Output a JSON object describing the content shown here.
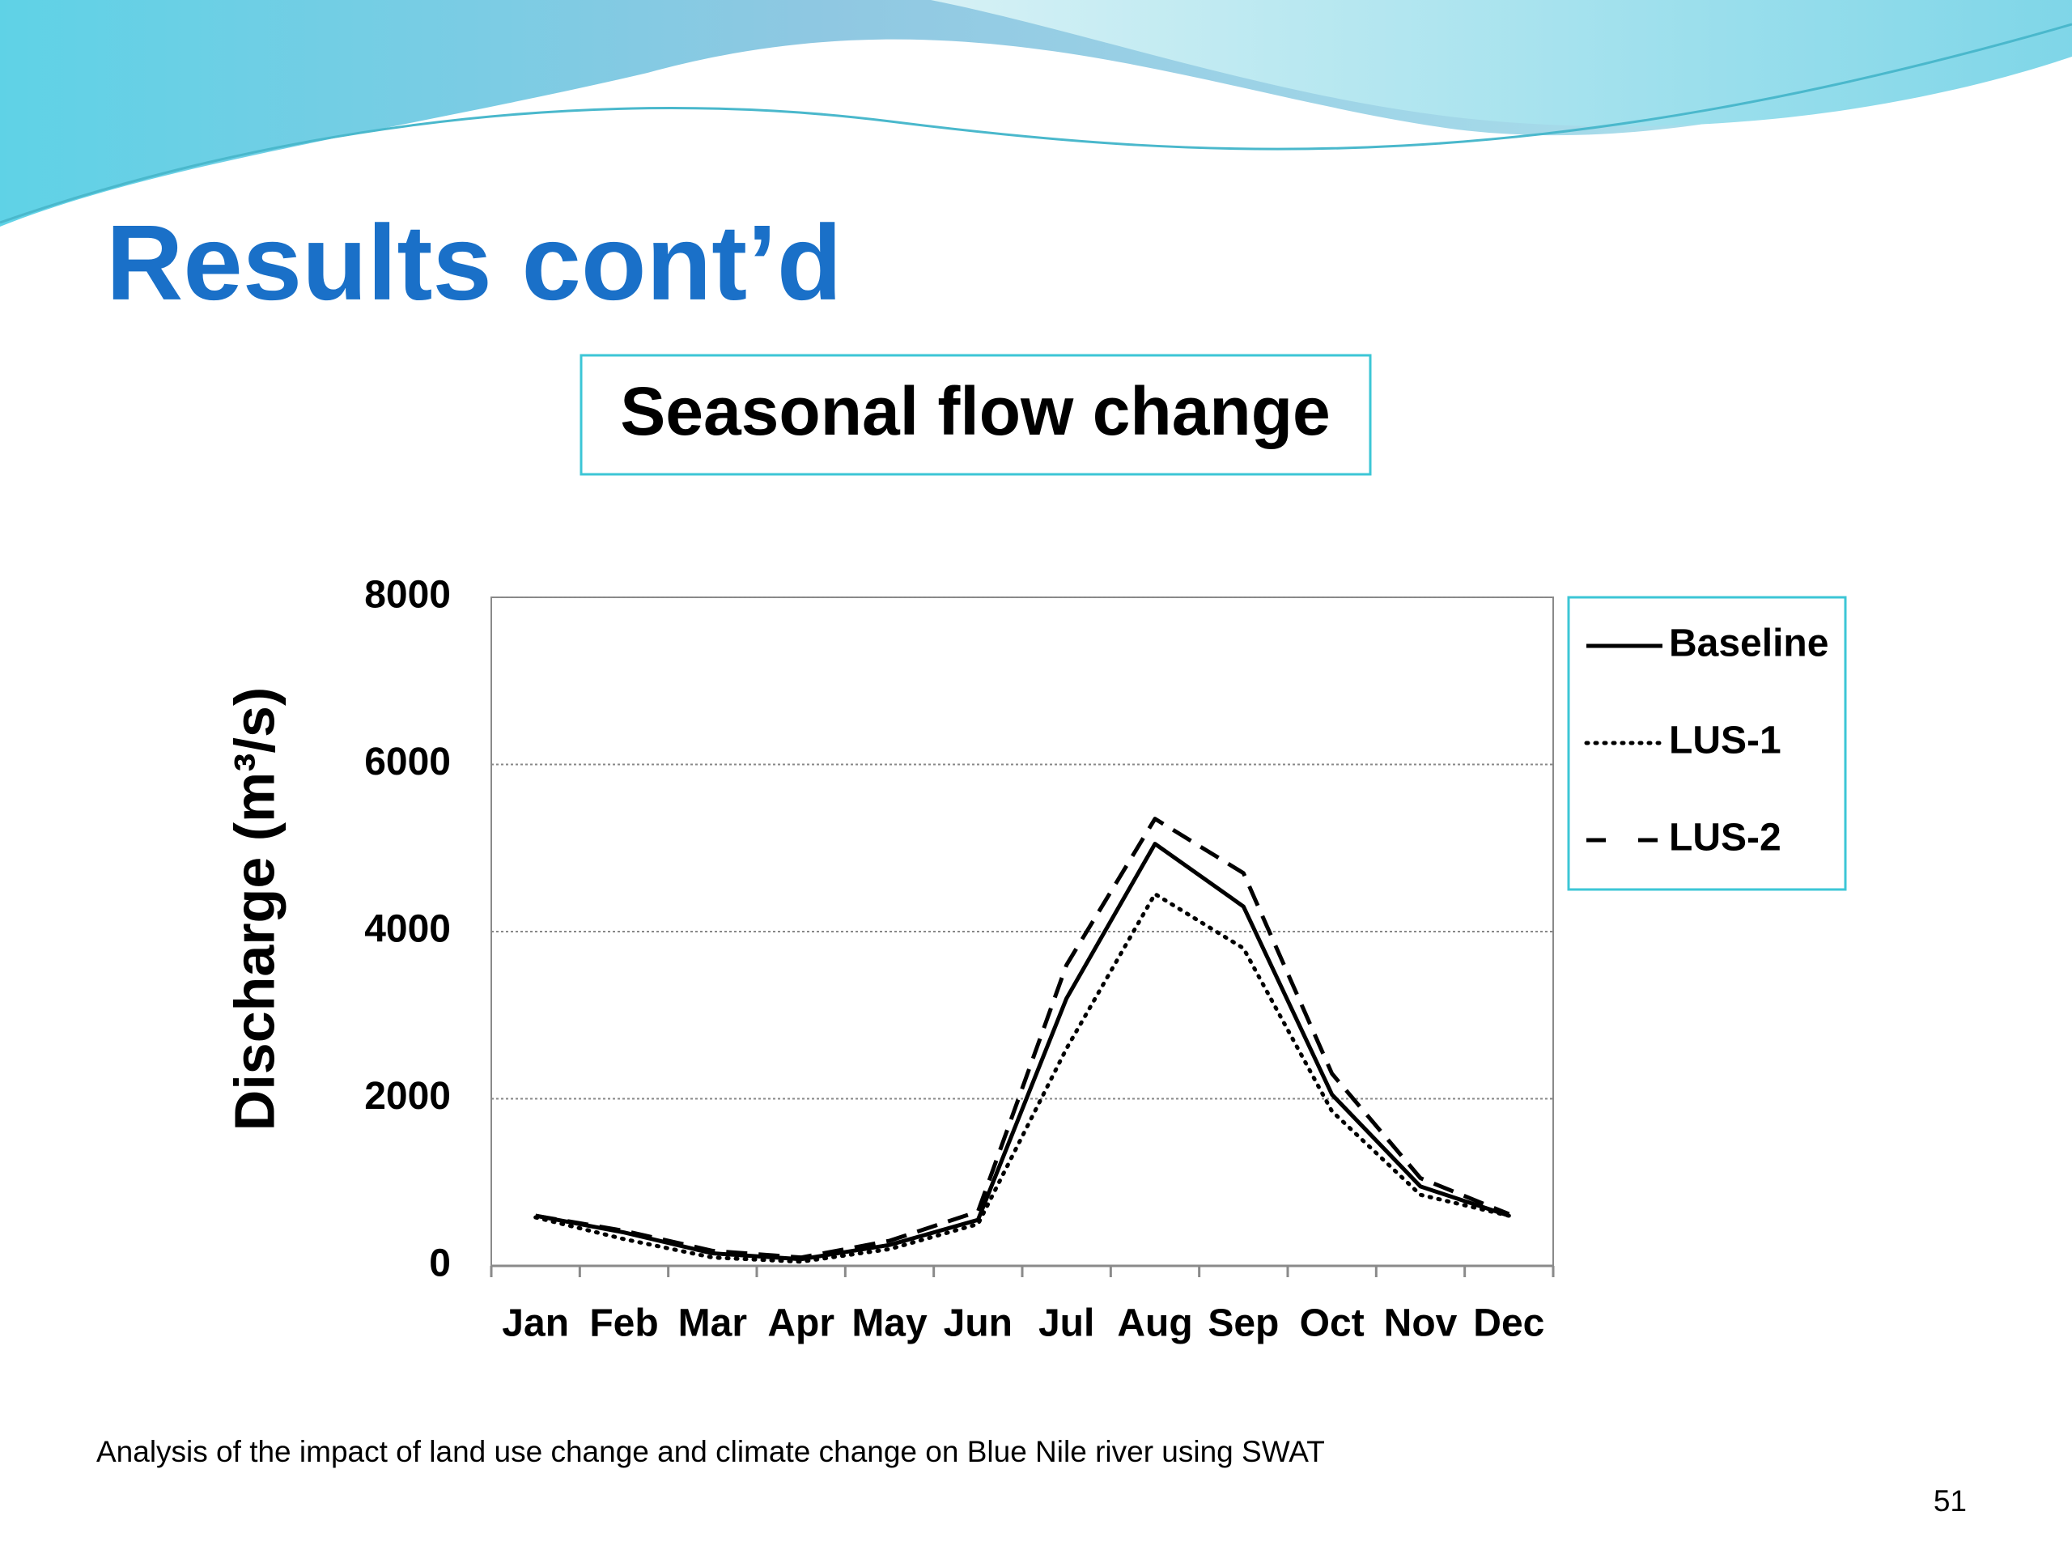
{
  "slide": {
    "title": "Results cont’d",
    "footer": "Analysis of the impact of land use change and climate change on Blue Nile river using SWAT",
    "page_number": 51
  },
  "chart_data": {
    "type": "line",
    "title": "Seasonal  flow change",
    "y_label": "Discharge (m³/s)",
    "categories": [
      "Jan",
      "Feb",
      "Mar",
      "Apr",
      "May",
      "Jun",
      "Jul",
      "Aug",
      "Sep",
      "Oct",
      "Nov",
      "Dec"
    ],
    "series": [
      {
        "name": "Baseline",
        "color": "#000000",
        "dash": "solid",
        "values": [
          600,
          400,
          150,
          80,
          250,
          550,
          3200,
          5050,
          4300,
          2050,
          950,
          600
        ]
      },
      {
        "name": "LUS-1",
        "color": "#000000",
        "dash": "dotted",
        "values": [
          580,
          320,
          100,
          50,
          200,
          500,
          2600,
          4450,
          3800,
          1850,
          850,
          600
        ]
      },
      {
        "name": "LUS-2",
        "color": "#000000",
        "dash": "dashed",
        "values": [
          600,
          420,
          180,
          100,
          300,
          650,
          3600,
          5350,
          4700,
          2300,
          1050,
          620
        ]
      }
    ],
    "ylim": [
      0,
      8000
    ],
    "yticks": [
      0,
      2000,
      4000,
      6000,
      8000
    ],
    "grid": true,
    "legend": "right"
  }
}
